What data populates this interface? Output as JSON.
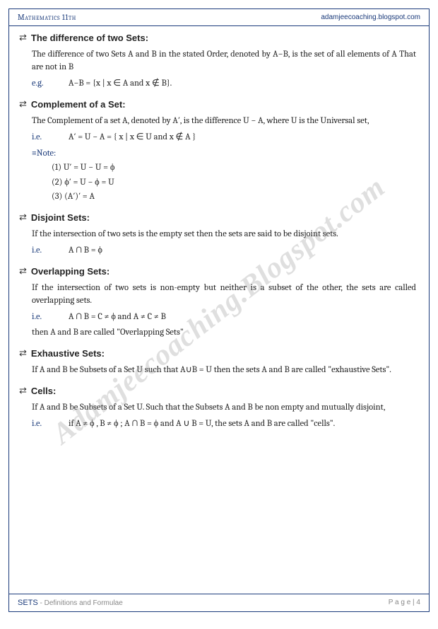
{
  "header": {
    "left": "Mathematics 11th",
    "right": "adamjeecoaching.blogspot.com"
  },
  "watermark": "Adamjeecoaching.Blogspot.com",
  "sections": [
    {
      "title": "The difference of two Sets:",
      "body": "The difference of two Sets A and B in the stated Order, denoted by A−B, is the set of all elements of A That are not in B",
      "eg_label": "e.g.",
      "eg": "A−B = {x | x ∈ A and x ∉ B}."
    },
    {
      "title": "Complement of a Set:",
      "body": "The Complement of a set A, denoted by A′, is the difference U − A, where U is the Universal set,",
      "eg_label": "i.e.",
      "eg": "A′ = U − A = { x | x ∈ U and x ∉ A }",
      "note_label": "≡Note:",
      "notes": [
        "(1)    U′ = U − U = ϕ",
        "(2)    ϕ′ = U − ϕ = U",
        "(3)    (A′)′ = A"
      ]
    },
    {
      "title": "Disjoint Sets:",
      "body": "If the intersection of two sets is the empty set then the sets are said to be disjoint sets.",
      "eg_label": "i.e.",
      "eg": "A ∩ B = ϕ"
    },
    {
      "title": "Overlapping Sets:",
      "body": "If the intersection of two sets is non-empty but neither is a subset of the other, the sets are called overlapping sets.",
      "eg_label": "i.e.",
      "eg": "A ∩ B = C ≠ ϕ and A ≠ C ≠ B",
      "extra": "then A and B are called \"Overlapping Sets\""
    },
    {
      "title": "Exhaustive Sets:",
      "body": "If A and B be Subsets of a Set U such that A∪B = U then the sets A and B are called \"exhaustive Sets\"."
    },
    {
      "title": "Cells:",
      "body": "If A and B be Subsets of a Set U. Such that the Subsets A and B be non empty and mutually disjoint,",
      "eg_label": "i.e.",
      "eg": "if A ≠ ϕ , B ≠ ϕ ; A ∩ B = ϕ and A ∪ B = U, the sets A and B are called \"cells\"."
    }
  ],
  "footer": {
    "left_main": "SETS",
    "left_sub": " - Definitions and Formulae",
    "right": "P a g e  | 4"
  }
}
